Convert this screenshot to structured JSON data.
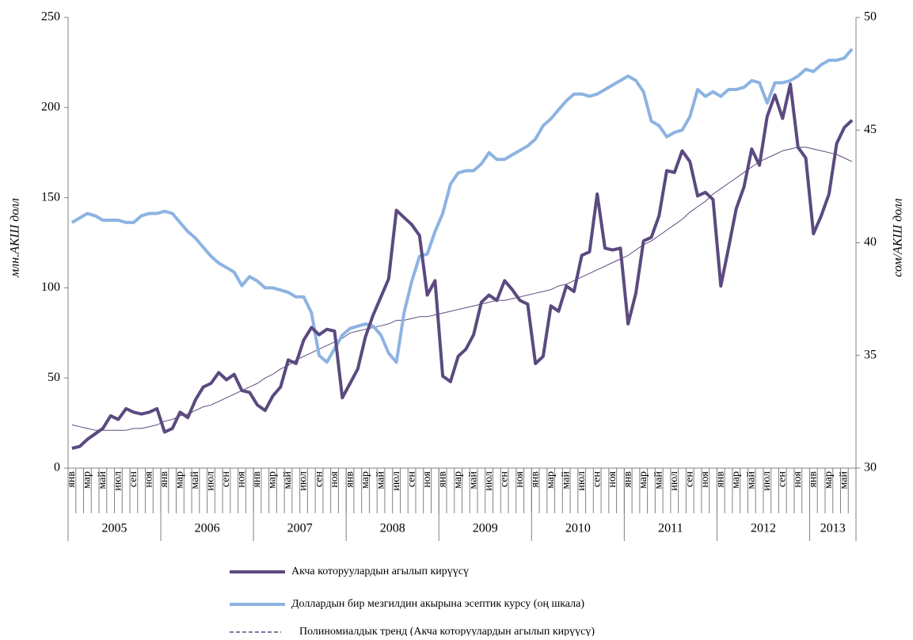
{
  "chart_data": {
    "type": "line",
    "y_label": "млн.АКШ долл",
    "y2_label": "сом/АКШ долл",
    "categories": [
      "янв",
      null,
      "мар",
      null,
      "май",
      null,
      "июл",
      null,
      "сен",
      null,
      "ноя",
      null,
      "янв",
      null,
      "мар",
      null,
      "май",
      null,
      "июл",
      null,
      "сен",
      null,
      "ноя",
      null,
      "янв",
      null,
      "мар",
      null,
      "май",
      null,
      "июл",
      null,
      "сен",
      null,
      "ноя",
      null,
      "янв",
      null,
      "мар",
      null,
      "май",
      null,
      "июл",
      null,
      "сен",
      null,
      "ноя",
      null,
      "янв",
      null,
      "мар",
      null,
      "май",
      null,
      "июл",
      null,
      "сен",
      null,
      "ноя",
      null,
      "янв",
      null,
      "мар",
      null,
      "май",
      null,
      "июл",
      null,
      "сен",
      null,
      "ноя",
      null,
      "янв",
      null,
      "мар",
      null,
      "май",
      null,
      "июл",
      null,
      "сен",
      null,
      "ноя",
      null,
      "янв",
      null,
      "мар",
      null,
      "май",
      null,
      "июл",
      null,
      "сен",
      null,
      "ноя",
      null,
      "янв",
      null,
      "мар",
      null,
      "май",
      null
    ],
    "years": [
      "2005",
      "2006",
      "2007",
      "2008",
      "2009",
      "2010",
      "2011",
      "2012",
      "2013"
    ],
    "ylim": [
      0,
      250
    ],
    "yticks": [
      0,
      50,
      100,
      150,
      200,
      250
    ],
    "y2lim": [
      30,
      50
    ],
    "y2ticks": [
      30,
      35,
      40,
      45,
      50
    ],
    "grid": false,
    "series": [
      {
        "name": "Акча которуулардын агылып кирүүсү",
        "color": "#5b4a7f",
        "width": 4,
        "values": [
          11,
          12,
          16,
          19,
          22,
          29,
          27,
          33,
          31,
          30,
          31,
          33,
          20,
          22,
          31,
          28,
          38,
          45,
          47,
          53,
          49,
          52,
          43,
          42,
          35,
          32,
          40,
          45,
          60,
          58,
          71,
          78,
          74,
          77,
          76,
          39,
          47,
          55,
          73,
          85,
          95,
          105,
          143,
          139,
          135,
          129,
          96,
          104,
          51,
          48,
          62,
          66,
          74,
          92,
          96,
          93,
          104,
          99,
          93,
          91,
          58,
          62,
          90,
          87,
          101,
          98,
          118,
          120,
          152,
          122,
          121,
          122,
          80,
          97,
          126,
          128,
          140,
          165,
          164,
          176,
          170,
          151,
          153,
          149,
          101,
          122,
          144,
          156,
          177,
          168,
          195,
          207,
          194,
          213,
          178,
          172,
          130,
          140,
          152,
          180,
          189,
          193
        ]
      },
      {
        "name": "Доллардын бир мезгилдин акырына эсептик курсу (оң шкала)",
        "color": "#8db3e2",
        "width": 4,
        "axis": "y2",
        "values": [
          40.9,
          41.1,
          41.3,
          41.2,
          41.0,
          41.0,
          41.0,
          40.9,
          40.9,
          41.2,
          41.3,
          41.3,
          41.4,
          41.3,
          40.9,
          40.5,
          40.2,
          39.8,
          39.4,
          39.1,
          38.9,
          38.7,
          38.1,
          38.5,
          38.3,
          38.0,
          38.0,
          37.9,
          37.8,
          37.6,
          37.6,
          36.9,
          35.0,
          34.7,
          35.3,
          35.9,
          36.2,
          36.3,
          36.4,
          36.3,
          35.9,
          35.1,
          34.7,
          36.9,
          38.3,
          39.4,
          39.5,
          40.5,
          41.3,
          42.6,
          43.1,
          43.2,
          43.2,
          43.5,
          44.0,
          43.7,
          43.7,
          43.9,
          44.1,
          44.3,
          44.6,
          45.2,
          45.5,
          45.9,
          46.3,
          46.6,
          46.6,
          46.5,
          46.6,
          46.8,
          47.0,
          47.2,
          47.4,
          47.2,
          46.7,
          45.4,
          45.2,
          44.7,
          44.9,
          45.0,
          45.6,
          46.8,
          46.5,
          46.7,
          46.5,
          46.8,
          46.8,
          46.9,
          47.2,
          47.1,
          46.2,
          47.1,
          47.1,
          47.2,
          47.4,
          47.7,
          47.6,
          47.9,
          48.1,
          48.1,
          48.2,
          48.6
        ]
      },
      {
        "name": "Полиномиалдык тренд  (Акча которуулардын агылып кирүүсү)",
        "color": "#5b4a7f",
        "width": 1,
        "values": [
          24,
          23,
          22,
          21,
          21,
          21,
          21,
          21,
          22,
          22,
          23,
          24,
          26,
          27,
          29,
          30,
          32,
          34,
          35,
          37,
          39,
          41,
          43,
          45,
          47,
          50,
          52,
          55,
          57,
          60,
          62,
          64,
          66,
          68,
          70,
          72,
          75,
          76,
          77,
          78,
          79,
          80,
          82,
          82,
          83,
          84,
          84,
          85,
          86,
          87,
          88,
          89,
          90,
          91,
          92,
          93,
          93,
          94,
          95,
          96,
          97,
          98,
          99,
          101,
          102,
          104,
          106,
          108,
          110,
          112,
          114,
          116,
          118,
          121,
          124,
          126,
          129,
          132,
          135,
          138,
          142,
          145,
          148,
          152,
          155,
          158,
          161,
          164,
          167,
          170,
          172,
          174,
          176,
          177,
          178,
          178,
          177,
          176,
          175,
          174,
          172,
          170
        ]
      }
    ]
  }
}
